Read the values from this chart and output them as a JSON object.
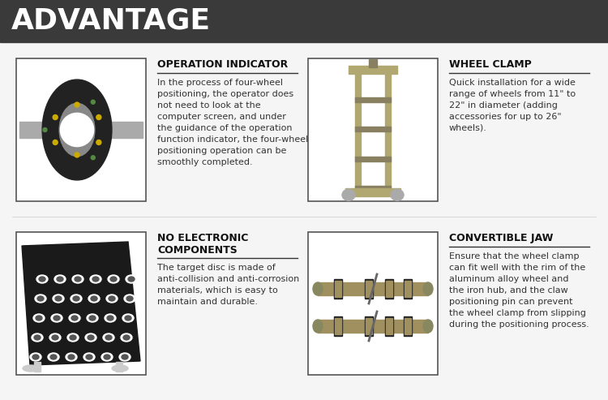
{
  "title": "ADVANTAGE",
  "title_bg": "#3a3a3a",
  "title_color": "#ffffff",
  "bg_color": "#f5f5f5",
  "img_border_color": "#555555",
  "heading_color": "#111111",
  "body_color": "#333333",
  "underline_color": "#333333",
  "sections": [
    {
      "heading": "OPERATION INDICATOR",
      "body": "In the process of four-wheel\npositioning, the operator does\nnot need to look at the\ncomputer screen, and under\nthe guidance of the operation\nfunction indicator, the four-wheel\npositioning operation can be\nsmoothly completed.",
      "img_placeholder": "left_top"
    },
    {
      "heading": "WHEEL CLAMP",
      "body": "Quick installation for a wide\nrange of wheels from 11\" to\n22\" in diameter (adding\naccessories for up to 26\"\nwheels).",
      "img_placeholder": "right_top"
    },
    {
      "heading": "NO ELECTRONIC\nCOMPONENTS",
      "body": "The target disc is made of\nanti-collision and anti-corrosion\nmaterials, which is easy to\nmaintain and durable.",
      "img_placeholder": "left_bot"
    },
    {
      "heading": "CONVERTIBLE JAW",
      "body": "Ensure that the wheel clamp\ncan fit well with the rim of the\naluminum alloy wheel and\nthe iron hub, and the claw\npositioning pin can prevent\nthe wheel clamp from slipping\nduring the positioning process.",
      "img_placeholder": "right_bot"
    }
  ],
  "heading_fontsize": 9.0,
  "body_fontsize": 8.0,
  "title_fontsize": 26
}
